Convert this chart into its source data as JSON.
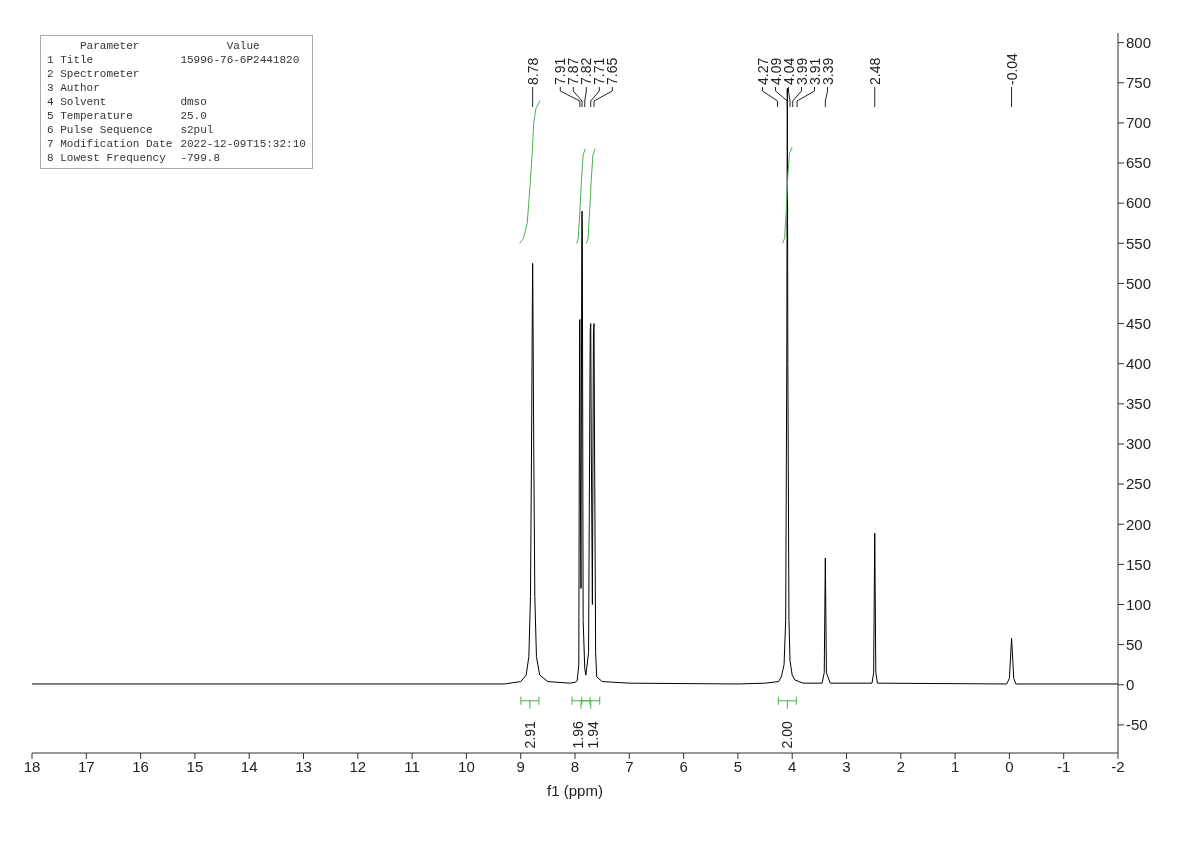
{
  "chart_data": {
    "type": "line",
    "xlabel": "f1 (ppm)",
    "xlim": [
      18,
      -2
    ],
    "xticks": [
      18,
      17,
      16,
      15,
      14,
      13,
      12,
      11,
      10,
      9,
      8,
      7,
      6,
      5,
      4,
      3,
      2,
      1,
      0,
      -1,
      -2
    ],
    "ylim": [
      -85,
      812
    ],
    "yticks": [
      -50,
      0,
      50,
      100,
      150,
      200,
      250,
      300,
      350,
      400,
      450,
      500,
      550,
      600,
      650,
      700,
      750,
      800
    ],
    "marker": "none",
    "line_style": "solid",
    "series": [
      {
        "color": "#000000",
        "x": [
          18,
          12,
          10,
          9.3,
          9.0,
          8.9,
          8.85,
          8.82,
          8.8,
          8.785,
          8.78,
          8.775,
          8.76,
          8.74,
          8.71,
          8.65,
          8.5,
          8.1,
          8.0,
          7.96,
          7.93,
          7.915,
          7.91,
          7.905,
          7.89,
          7.875,
          7.87,
          7.865,
          7.85,
          7.82,
          7.8,
          7.75,
          7.72,
          7.71,
          7.7,
          7.68,
          7.66,
          7.65,
          7.64,
          7.62,
          7.6,
          7.5,
          7.0,
          5.0,
          4.5,
          4.25,
          4.2,
          4.15,
          4.12,
          4.1,
          4.09,
          4.08,
          4.06,
          4.04,
          4.0,
          3.95,
          3.8,
          3.45,
          3.41,
          3.39,
          3.37,
          3.3,
          2.53,
          2.5,
          2.48,
          2.46,
          2.43,
          0.05,
          0.0,
          -0.04,
          -0.08,
          -0.12,
          -2
        ],
        "values": [
          1,
          1,
          1,
          1,
          4,
          12,
          35,
          110,
          300,
          480,
          525,
          480,
          300,
          110,
          35,
          12,
          4,
          2,
          3,
          5,
          25,
          450,
          455,
          300,
          120,
          560,
          590,
          560,
          80,
          20,
          12,
          40,
          440,
          450,
          300,
          100,
          440,
          450,
          300,
          40,
          10,
          4,
          2,
          1,
          2,
          4,
          10,
          25,
          80,
          400,
          743,
          400,
          80,
          30,
          12,
          6,
          2,
          2,
          15,
          158,
          15,
          2,
          2,
          15,
          189,
          15,
          2,
          1,
          8,
          58,
          8,
          1,
          1
        ]
      },
      {
        "color": "#4caf50",
        "x": [
          9.02,
          8.95,
          8.88,
          8.83,
          8.79,
          8.76,
          8.72,
          8.64
        ],
        "values": [
          550,
          556,
          575,
          620,
          660,
          700,
          718,
          728
        ]
      },
      {
        "color": "#4caf50",
        "x": [
          7.97,
          7.94,
          7.91,
          7.88,
          7.85,
          7.81
        ],
        "values": [
          550,
          556,
          590,
          630,
          660,
          668
        ]
      },
      {
        "color": "#4caf50",
        "x": [
          7.79,
          7.76,
          7.73,
          7.7,
          7.67,
          7.63
        ],
        "values": [
          550,
          556,
          590,
          630,
          660,
          668
        ]
      },
      {
        "color": "#4caf50",
        "x": [
          4.18,
          4.14,
          4.11,
          4.08,
          4.05,
          4.0
        ],
        "values": [
          550,
          556,
          590,
          635,
          662,
          670
        ]
      }
    ],
    "annotations": [
      "Parameter\tValue",
      "1 Title\t15996-76-6P2441820",
      "2 Spectrometer\t",
      "3 Author\t",
      "4 Solvent\tdmso",
      "5 Temperature\t25.0",
      "6 Pulse Sequence\ts2pul",
      "7 Modification Date\t2022-12-09T15:32:10",
      "8 Lowest Frequency\t-799.8",
      {
        "text": "8.78",
        "x": 8.78
      },
      {
        "text": "7.91",
        "x": 7.91
      },
      {
        "text": "7.87",
        "x": 7.87
      },
      {
        "text": "7.82",
        "x": 7.82
      },
      {
        "text": "7.71",
        "x": 7.71
      },
      {
        "text": "7.65",
        "x": 7.65
      },
      {
        "text": "4.27",
        "x": 4.27
      },
      {
        "text": "4.09",
        "x": 4.09
      },
      {
        "text": "4.04",
        "x": 4.04
      },
      {
        "text": "3.99",
        "x": 3.99
      },
      {
        "text": "3.91",
        "x": 3.91
      },
      {
        "text": "3.39",
        "x": 3.39
      },
      {
        "text": "2.48",
        "x": 2.48
      },
      {
        "text": "-0.04",
        "x": -0.04
      },
      "2.91",
      "1.96",
      "1.94",
      "2.00"
    ]
  }
}
